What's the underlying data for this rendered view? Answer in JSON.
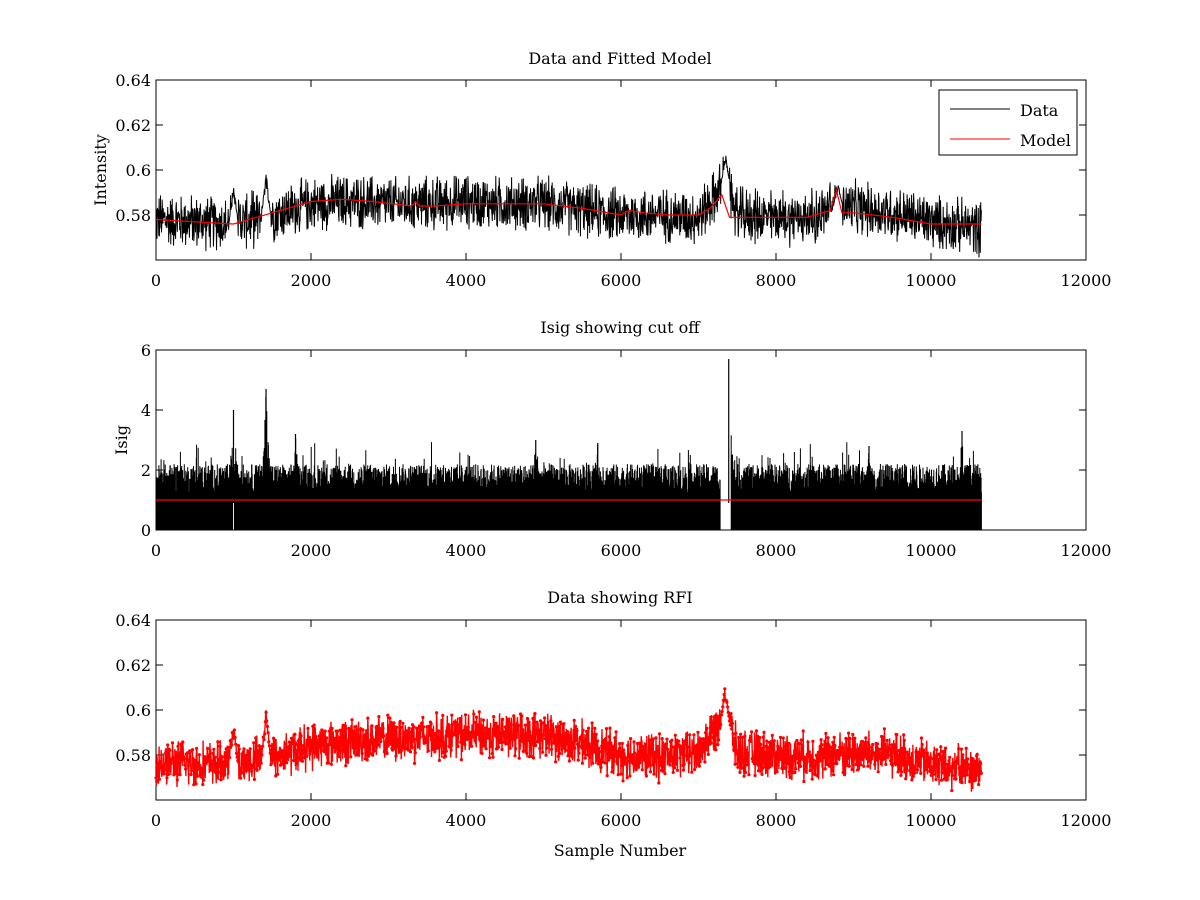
{
  "chart_data": [
    {
      "type": "line",
      "title": "Data and Fitted Model",
      "xlabel": "",
      "ylabel": "Intensity",
      "xlim": [
        0,
        12000
      ],
      "ylim": [
        0.56,
        0.64
      ],
      "xticks": [
        "0",
        "2000",
        "4000",
        "6000",
        "8000",
        "10000",
        "12000"
      ],
      "yticks": [
        "0.58",
        "0.6",
        "0.62",
        "0.64"
      ],
      "legend": {
        "position": "top-right",
        "entries": [
          "Data",
          "Model"
        ]
      },
      "series": [
        {
          "name": "Data",
          "color": "#000000",
          "x_range": [
            0,
            10650
          ],
          "trend": {
            "x": [
              0,
              500,
              950,
              1500,
              2000,
              2500,
              3000,
              3500,
              4000,
              4500,
              5000,
              5500,
              6000,
              6500,
              7000,
              7250,
              7350,
              7500,
              8000,
              8500,
              8800,
              9000,
              9500,
              10000,
              10650
            ],
            "y": [
              0.578,
              0.577,
              0.576,
              0.58,
              0.585,
              0.586,
              0.585,
              0.585,
              0.586,
              0.585,
              0.585,
              0.582,
              0.58,
              0.58,
              0.579,
              0.59,
              0.597,
              0.58,
              0.579,
              0.579,
              0.585,
              0.583,
              0.581,
              0.577,
              0.574
            ]
          },
          "noise_band": 0.014,
          "spikes": [
            {
              "x": 1000,
              "y": 0.595
            },
            {
              "x": 1420,
              "y": 0.601
            },
            {
              "x": 7350,
              "y": 0.607
            },
            {
              "x": 8800,
              "y": 0.594
            }
          ]
        },
        {
          "name": "Model",
          "color": "#ff0000",
          "x": [
            0,
            500,
            1000,
            1500,
            2000,
            2400,
            2800,
            3300,
            3350,
            3400,
            3600,
            4000,
            4500,
            5000,
            5500,
            6000,
            6100,
            6300,
            6600,
            7000,
            7150,
            7250,
            7300,
            7400,
            7600,
            8000,
            8400,
            8700,
            8780,
            8850,
            9000,
            9500,
            10000,
            10650
          ],
          "y": [
            0.578,
            0.577,
            0.576,
            0.581,
            0.586,
            0.587,
            0.586,
            0.584,
            0.586,
            0.584,
            0.584,
            0.585,
            0.585,
            0.585,
            0.583,
            0.58,
            0.582,
            0.581,
            0.58,
            0.58,
            0.583,
            0.587,
            0.589,
            0.579,
            0.579,
            0.579,
            0.579,
            0.582,
            0.591,
            0.581,
            0.581,
            0.579,
            0.576,
            0.576
          ]
        }
      ]
    },
    {
      "type": "line",
      "title": "Isig showing cut off",
      "xlabel": "",
      "ylabel": "Isig",
      "xlim": [
        0,
        12000
      ],
      "ylim": [
        0,
        6
      ],
      "xticks": [
        "0",
        "2000",
        "4000",
        "6000",
        "8000",
        "10000",
        "12000"
      ],
      "yticks": [
        "0",
        "2",
        "4",
        "6"
      ],
      "series": [
        {
          "name": "Isig",
          "color": "#000000",
          "x_range": [
            0,
            10650
          ],
          "band": [
            0,
            2.2
          ],
          "spikes": [
            {
              "x": 1000,
              "y": 4.0
            },
            {
              "x": 1420,
              "y": 4.7
            },
            {
              "x": 1800,
              "y": 3.2
            },
            {
              "x": 4900,
              "y": 3.0
            },
            {
              "x": 5700,
              "y": 2.9
            },
            {
              "x": 7390,
              "y": 5.7
            },
            {
              "x": 9200,
              "y": 2.8
            },
            {
              "x": 10400,
              "y": 3.3
            }
          ],
          "gaps": [
            [
              990,
              1010
            ],
            [
              7280,
              7420
            ]
          ]
        },
        {
          "name": "cut off",
          "color": "#ff0000",
          "x": [
            0,
            10650
          ],
          "y": [
            1,
            1
          ]
        }
      ]
    },
    {
      "type": "scatter",
      "title": "Data showing RFI",
      "xlabel": "Sample Number",
      "ylabel": "",
      "xlim": [
        0,
        12000
      ],
      "ylim": [
        0.56,
        0.64
      ],
      "xticks": [
        "0",
        "2000",
        "4000",
        "6000",
        "8000",
        "10000",
        "12000"
      ],
      "yticks": [
        "0.58",
        "0.6",
        "0.62",
        "0.64"
      ],
      "series": [
        {
          "name": "RFI",
          "color": "#ff0000",
          "marker": "dot",
          "x_range": [
            0,
            10650
          ],
          "trend": {
            "x": [
              0,
              500,
              1000,
              1500,
              2000,
              2500,
              3000,
              3500,
              4000,
              4500,
              5000,
              5500,
              6000,
              6500,
              7000,
              7350,
              7500,
              8000,
              8500,
              9000,
              9500,
              10000,
              10650
            ],
            "y": [
              0.577,
              0.576,
              0.576,
              0.579,
              0.584,
              0.586,
              0.587,
              0.588,
              0.589,
              0.589,
              0.589,
              0.585,
              0.58,
              0.579,
              0.581,
              0.6,
              0.581,
              0.58,
              0.579,
              0.581,
              0.58,
              0.576,
              0.573
            ]
          },
          "noise_band": 0.012,
          "spikes": [
            {
              "x": 1000,
              "y": 0.595
            },
            {
              "x": 1420,
              "y": 0.602
            },
            {
              "x": 7350,
              "y": 0.607
            },
            {
              "x": 10200,
              "y": 0.561
            }
          ]
        }
      ]
    }
  ]
}
